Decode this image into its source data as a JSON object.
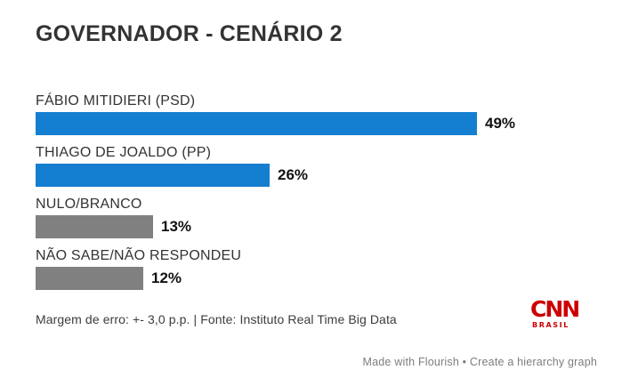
{
  "title": "GOVERNADOR - CENÁRIO 2",
  "chart_data": {
    "type": "bar",
    "orientation": "horizontal",
    "title": "GOVERNADOR - CENÁRIO 2",
    "categories": [
      "FÁBIO MITIDIERI (PSD)",
      "THIAGO DE JOALDO (PP)",
      "NULO/BRANCO",
      "NÃO SABE/NÃO RESPONDEU"
    ],
    "values": [
      49,
      26,
      13,
      12
    ],
    "value_labels": [
      "49%",
      "26%",
      "13%",
      "12%"
    ],
    "bar_colors": [
      "#147ed0",
      "#147ed0",
      "#808080",
      "#808080"
    ],
    "xlabel": "",
    "ylabel": "",
    "xlim": [
      0,
      49
    ],
    "grid": false,
    "legend": "none"
  },
  "footer": {
    "source_note": "Margem de erro: +- 3,0 p.p. | Fonte: Instituto Real Time Big Data",
    "credit": "Made with Flourish • Create a hierarchy graph"
  },
  "logo": {
    "brand": "CNN",
    "sub": "BRASIL",
    "color": "#cc0000"
  },
  "colors": {
    "bar_blue": "#147ed0",
    "bar_gray": "#808080",
    "title_text": "#333333",
    "label_text": "#333333",
    "value_text": "#111111",
    "source_text": "#3c3c3c",
    "credit_text": "#7d7d7d",
    "background": "#ffffff"
  }
}
